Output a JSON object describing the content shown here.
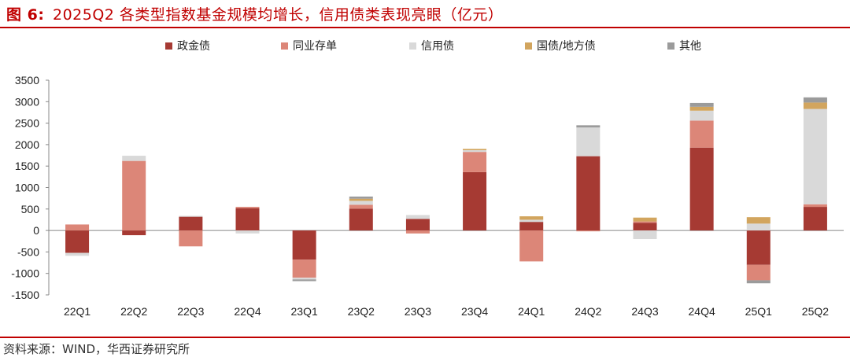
{
  "header": {
    "figure_label": "图 6:",
    "title_text": "2025Q2 各类型指数基金规模均增长，信用债类表现亮眼（亿元）"
  },
  "footer": {
    "source": "资料来源：WIND，华西证券研究所"
  },
  "colors": {
    "accent": "#c00000",
    "series": [
      "#a63a33",
      "#dc8678",
      "#d9d9d9",
      "#d2a55e",
      "#9b9b9b"
    ]
  },
  "chart_data": {
    "type": "bar",
    "stacked": true,
    "title": "2025Q2 各类型指数基金规模均增长，信用债类表现亮眼（亿元）",
    "categories": [
      "22Q1",
      "22Q2",
      "22Q3",
      "22Q4",
      "23Q1",
      "23Q2",
      "23Q3",
      "23Q4",
      "24Q1",
      "24Q2",
      "24Q3",
      "24Q4",
      "25Q1",
      "25Q2"
    ],
    "ylim": [
      -1500,
      3500
    ],
    "yticks": [
      -1500,
      -1000,
      -500,
      0,
      500,
      1000,
      1500,
      2000,
      2500,
      3000,
      3500
    ],
    "legend_position": "top",
    "series": [
      {
        "name": "政金债",
        "values": [
          -520,
          -110,
          320,
          520,
          -680,
          510,
          270,
          1360,
          200,
          1730,
          180,
          1930,
          -800,
          550
        ]
      },
      {
        "name": "同业存单",
        "values": [
          140,
          1620,
          -370,
          30,
          -420,
          90,
          -70,
          470,
          -720,
          -20,
          30,
          630,
          -360,
          60
        ]
      },
      {
        "name": "信用债",
        "values": [
          -70,
          120,
          20,
          -70,
          -40,
          90,
          90,
          40,
          50,
          670,
          -200,
          230,
          160,
          2220
        ]
      },
      {
        "name": "国债/地方债",
        "values": [
          0,
          0,
          0,
          0,
          0,
          50,
          0,
          30,
          80,
          0,
          90,
          90,
          150,
          150
        ]
      },
      {
        "name": "其他",
        "values": [
          0,
          0,
          0,
          0,
          -40,
          50,
          0,
          0,
          0,
          50,
          0,
          90,
          -70,
          120
        ]
      }
    ]
  }
}
